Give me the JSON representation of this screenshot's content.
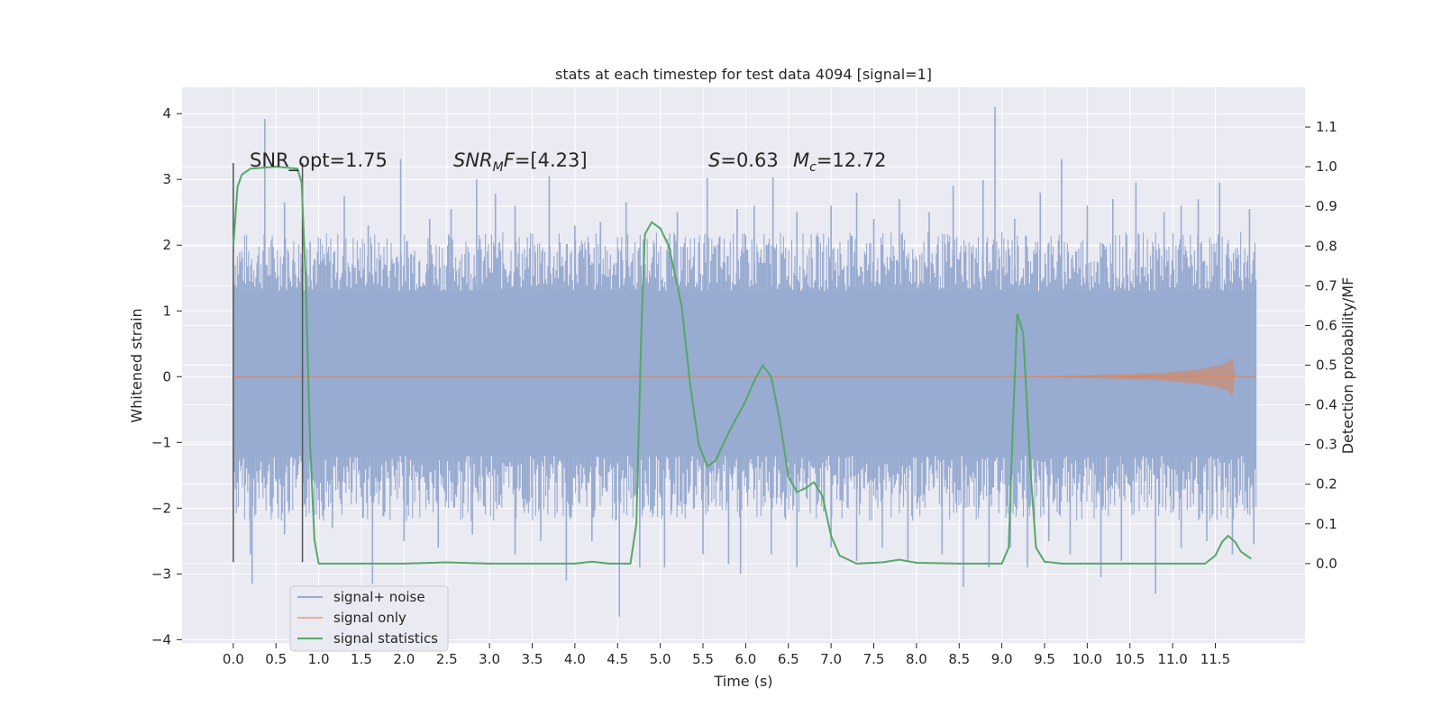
{
  "chart_data": {
    "type": "line",
    "title": "stats at each timestep for test data 4094 [signal=1]",
    "xlabel": "Time (s)",
    "ylabel": "Whitened strain",
    "ylabel_right": "Detection probability/MF",
    "xlim": [
      -0.6,
      12.55
    ],
    "ylim": [
      -4.05,
      4.4
    ],
    "ylim_right": [
      -0.2,
      1.2
    ],
    "x_ticks": [
      "0.0",
      "0.5",
      "1.0",
      "1.5",
      "2.0",
      "2.5",
      "3.0",
      "3.5",
      "4.0",
      "4.5",
      "5.0",
      "5.5",
      "6.0",
      "6.5",
      "7.0",
      "7.5",
      "8.0",
      "8.5",
      "9.0",
      "9.5",
      "10.0",
      "10.5",
      "11.0",
      "11.5"
    ],
    "y_ticks": [
      "−4",
      "−3",
      "−2",
      "−1",
      "0",
      "1",
      "2",
      "3",
      "4"
    ],
    "y_ticks_right": [
      "0.0",
      "0.1",
      "0.2",
      "0.3",
      "0.4",
      "0.5",
      "0.6",
      "0.7",
      "0.8",
      "0.9",
      "1.0",
      "1.1"
    ],
    "grid": true,
    "legend_position": "lower-left",
    "colors": {
      "background": "#eaeaf2",
      "grid": "#ffffff",
      "noise": "#98abd0",
      "signal_only": "#dd8452",
      "statistics": "#55a868",
      "vline": "#555555"
    },
    "annotations": {
      "snr_opt": "SNR_opt=1.75",
      "snr_mf": "=[4.23]",
      "snr_mf_sym": "SNR",
      "snr_mf_sub": "M",
      "snr_mf_f": "F",
      "s_sym": "S",
      "s_val": "=0.63",
      "mc_sym": "M",
      "mc_sub": "c",
      "mc_val": "=12.72"
    },
    "vlines_x": [
      0.0,
      0.81
    ],
    "vlines_y": [
      -2.82,
      3.25
    ],
    "series": [
      {
        "name": "signal+ noise",
        "axis": "left",
        "band": {
          "x_start": 0.0,
          "x_end": 11.98,
          "low": -1.2,
          "high": 1.3
        },
        "spikes_high": [
          [
            0.37,
            3.92
          ],
          [
            0.6,
            2.65
          ],
          [
            0.9,
            2.05
          ],
          [
            1.3,
            2.75
          ],
          [
            1.58,
            2.3
          ],
          [
            1.96,
            3.31
          ],
          [
            2.3,
            2.4
          ],
          [
            2.55,
            2.55
          ],
          [
            2.85,
            3.0
          ],
          [
            3.07,
            2.78
          ],
          [
            3.3,
            2.6
          ],
          [
            3.7,
            3.05
          ],
          [
            4.0,
            2.3
          ],
          [
            4.3,
            2.35
          ],
          [
            4.6,
            2.65
          ],
          [
            5.2,
            2.5
          ],
          [
            5.55,
            3.02
          ],
          [
            5.9,
            2.55
          ],
          [
            6.1,
            2.6
          ],
          [
            6.32,
            3.03
          ],
          [
            6.6,
            2.5
          ],
          [
            7.0,
            2.6
          ],
          [
            7.3,
            2.8
          ],
          [
            7.5,
            2.4
          ],
          [
            7.8,
            2.7
          ],
          [
            8.15,
            2.5
          ],
          [
            8.43,
            2.9
          ],
          [
            8.78,
            2.99
          ],
          [
            8.92,
            4.1
          ],
          [
            9.15,
            2.4
          ],
          [
            9.45,
            2.8
          ],
          [
            9.7,
            3.31
          ],
          [
            10.0,
            2.6
          ],
          [
            10.3,
            2.7
          ],
          [
            10.57,
            2.95
          ],
          [
            10.9,
            2.5
          ],
          [
            11.1,
            2.6
          ],
          [
            11.3,
            2.7
          ],
          [
            11.55,
            2.95
          ],
          [
            11.9,
            2.55
          ]
        ],
        "spikes_low": [
          [
            0.2,
            -2.7
          ],
          [
            0.22,
            -3.15
          ],
          [
            0.6,
            -2.4
          ],
          [
            1.16,
            -2.3
          ],
          [
            1.63,
            -3.15
          ],
          [
            2.0,
            -2.5
          ],
          [
            2.4,
            -2.6
          ],
          [
            2.8,
            -2.4
          ],
          [
            3.3,
            -2.7
          ],
          [
            3.6,
            -2.5
          ],
          [
            3.9,
            -3.1
          ],
          [
            4.2,
            -2.5
          ],
          [
            4.52,
            -3.65
          ],
          [
            4.76,
            -2.9
          ],
          [
            5.05,
            -2.9
          ],
          [
            5.5,
            -2.7
          ],
          [
            5.8,
            -2.85
          ],
          [
            5.94,
            -3.0
          ],
          [
            6.3,
            -2.7
          ],
          [
            6.6,
            -2.9
          ],
          [
            7.0,
            -2.6
          ],
          [
            7.3,
            -2.8
          ],
          [
            7.6,
            -2.6
          ],
          [
            7.9,
            -2.8
          ],
          [
            8.3,
            -2.7
          ],
          [
            8.55,
            -3.2
          ],
          [
            8.85,
            -2.9
          ],
          [
            9.1,
            -2.6
          ],
          [
            9.3,
            -2.9
          ],
          [
            9.55,
            -2.5
          ],
          [
            9.8,
            -2.7
          ],
          [
            10.16,
            -3.05
          ],
          [
            10.4,
            -2.8
          ],
          [
            10.8,
            -3.3
          ],
          [
            11.1,
            -2.6
          ],
          [
            11.4,
            -2.5
          ],
          [
            11.7,
            -2.7
          ],
          [
            11.95,
            -2.55
          ]
        ]
      },
      {
        "name": "signal only",
        "axis": "left",
        "points": [
          [
            0.0,
            0.0
          ],
          [
            9.0,
            0.0
          ],
          [
            10.5,
            0.02
          ],
          [
            11.2,
            0.07
          ],
          [
            11.5,
            0.12
          ],
          [
            11.64,
            0.18
          ],
          [
            11.7,
            0.3
          ],
          [
            11.72,
            0.0
          ],
          [
            11.98,
            0.0
          ]
        ],
        "envelope": [
          [
            9.0,
            0.0
          ],
          [
            10.0,
            0.02
          ],
          [
            10.8,
            0.05
          ],
          [
            11.3,
            0.11
          ],
          [
            11.55,
            0.17
          ],
          [
            11.65,
            0.22
          ],
          [
            11.7,
            0.3
          ],
          [
            11.73,
            0.0
          ],
          [
            11.98,
            0.0
          ]
        ]
      },
      {
        "name": "signal statistics",
        "axis": "right",
        "points": [
          [
            0.0,
            0.8
          ],
          [
            0.05,
            0.95
          ],
          [
            0.1,
            0.98
          ],
          [
            0.2,
            0.995
          ],
          [
            0.5,
            1.0
          ],
          [
            0.75,
            0.995
          ],
          [
            0.8,
            0.96
          ],
          [
            0.85,
            0.7
          ],
          [
            0.9,
            0.3
          ],
          [
            0.95,
            0.06
          ],
          [
            1.0,
            0.0
          ],
          [
            1.5,
            0.0
          ],
          [
            2.0,
            0.0
          ],
          [
            2.5,
            0.003
          ],
          [
            3.0,
            0.0
          ],
          [
            3.5,
            0.0
          ],
          [
            4.0,
            0.0
          ],
          [
            4.2,
            0.005
          ],
          [
            4.4,
            0.0
          ],
          [
            4.65,
            0.0
          ],
          [
            4.72,
            0.1
          ],
          [
            4.78,
            0.6
          ],
          [
            4.82,
            0.83
          ],
          [
            4.9,
            0.86
          ],
          [
            5.0,
            0.845
          ],
          [
            5.1,
            0.8
          ],
          [
            5.25,
            0.65
          ],
          [
            5.35,
            0.45
          ],
          [
            5.45,
            0.3
          ],
          [
            5.55,
            0.245
          ],
          [
            5.65,
            0.26
          ],
          [
            5.8,
            0.33
          ],
          [
            6.0,
            0.41
          ],
          [
            6.1,
            0.46
          ],
          [
            6.2,
            0.5
          ],
          [
            6.3,
            0.47
          ],
          [
            6.4,
            0.36
          ],
          [
            6.5,
            0.22
          ],
          [
            6.6,
            0.18
          ],
          [
            6.7,
            0.19
          ],
          [
            6.8,
            0.205
          ],
          [
            6.9,
            0.17
          ],
          [
            7.0,
            0.07
          ],
          [
            7.1,
            0.02
          ],
          [
            7.3,
            0.0
          ],
          [
            7.6,
            0.003
          ],
          [
            7.8,
            0.01
          ],
          [
            8.0,
            0.002
          ],
          [
            8.5,
            0.0
          ],
          [
            9.0,
            0.0
          ],
          [
            9.08,
            0.04
          ],
          [
            9.13,
            0.35
          ],
          [
            9.18,
            0.63
          ],
          [
            9.25,
            0.58
          ],
          [
            9.33,
            0.25
          ],
          [
            9.4,
            0.04
          ],
          [
            9.5,
            0.005
          ],
          [
            9.7,
            0.0
          ],
          [
            10.5,
            0.0
          ],
          [
            11.0,
            0.0
          ],
          [
            11.38,
            0.0
          ],
          [
            11.5,
            0.02
          ],
          [
            11.58,
            0.055
          ],
          [
            11.65,
            0.07
          ],
          [
            11.73,
            0.055
          ],
          [
            11.8,
            0.03
          ],
          [
            11.92,
            0.012
          ]
        ]
      }
    ],
    "legend": [
      "signal+ noise",
      "signal only",
      "signal statistics"
    ]
  }
}
